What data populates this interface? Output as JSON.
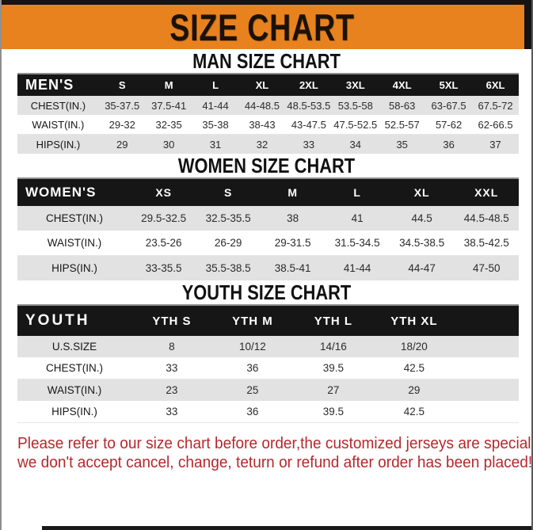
{
  "page": {
    "title": "SIZE CHART",
    "colors": {
      "banner_orange": "#E8821E",
      "table_header_black": "#161616",
      "row_gray": "#E2E2E2",
      "footer_red": "#B5282C"
    },
    "footer": {
      "line1": "Please refer to our size chart before order,the customized jerseys are special products,",
      "line2": "we don't accept cancel, change, teturn or refund after order has been placed!"
    }
  },
  "sections": [
    {
      "heading": "MAN SIZE CHART",
      "table": {
        "header": [
          "MEN'S",
          "S",
          "M",
          "L",
          "XL",
          "2XL",
          "3XL",
          "4XL",
          "5XL",
          "6XL"
        ],
        "rows": [
          [
            "CHEST(IN.)",
            "35-37.5",
            "37.5-41",
            "41-44",
            "44-48.5",
            "48.5-53.5",
            "53.5-58",
            "58-63",
            "63-67.5",
            "67.5-72"
          ],
          [
            "WAIST(IN.)",
            "29-32",
            "32-35",
            "35-38",
            "38-43",
            "43-47.5",
            "47.5-52.5",
            "52.5-57",
            "57-62",
            "62-66.5"
          ],
          [
            "HIPS(IN.)",
            "29",
            "30",
            "31",
            "32",
            "33",
            "34",
            "35",
            "36",
            "37"
          ]
        ]
      }
    },
    {
      "heading": "WOMEN SIZE CHART",
      "table": {
        "header": [
          "WOMEN'S",
          "XS",
          "S",
          "M",
          "L",
          "XL",
          "XXL"
        ],
        "rows": [
          [
            "CHEST(IN.)",
            "29.5-32.5",
            "32.5-35.5",
            "38",
            "41",
            "44.5",
            "44.5-48.5"
          ],
          [
            "WAIST(IN.)",
            "23.5-26",
            "26-29",
            "29-31.5",
            "31.5-34.5",
            "34.5-38.5",
            "38.5-42.5"
          ],
          [
            "HIPS(IN.)",
            "33-35.5",
            "35.5-38.5",
            "38.5-41",
            "41-44",
            "44-47",
            "47-50"
          ]
        ]
      }
    },
    {
      "heading": "YOUTH SIZE CHART",
      "table": {
        "header": [
          "YOUTH",
          "YTH S",
          "YTH M",
          "YTH L",
          "YTH XL"
        ],
        "rows": [
          [
            "U.S.SIZE",
            "8",
            "10/12",
            "14/16",
            "18/20"
          ],
          [
            "CHEST(IN.)",
            "33",
            "36",
            "39.5",
            "42.5"
          ],
          [
            "WAIST(IN.)",
            "23",
            "25",
            "27",
            "29"
          ],
          [
            "HIPS(IN.)",
            "33",
            "36",
            "39.5",
            "42.5"
          ]
        ]
      }
    }
  ]
}
